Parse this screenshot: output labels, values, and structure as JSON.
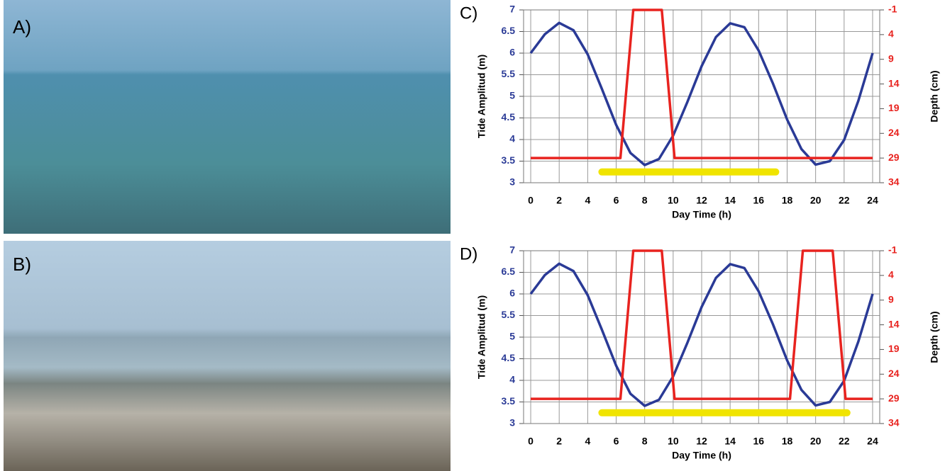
{
  "photo_labels": [
    "A)",
    "B)"
  ],
  "chart_data": [
    {
      "type": "line",
      "panel_label": "C)",
      "xlabel": "Day Time (h)",
      "ylabel": "Tide Amplitud (m)",
      "y2label": "Depth (cm)",
      "xlim": [
        -0.5,
        24.5
      ],
      "xticks": [
        0,
        2,
        4,
        6,
        8,
        10,
        12,
        14,
        16,
        18,
        20,
        22,
        24
      ],
      "ylim": [
        3,
        7
      ],
      "yticks": [
        3,
        3.5,
        4,
        4.5,
        5,
        5.5,
        6,
        6.5,
        7
      ],
      "y2lim": [
        34,
        -1
      ],
      "y2ticks": [
        -1,
        4,
        9,
        14,
        19,
        24,
        29,
        34
      ],
      "grid": true,
      "series": [
        {
          "color": "#2a3a96",
          "x": [
            0,
            1,
            2,
            3,
            4,
            5,
            6,
            7,
            8,
            9,
            10,
            11,
            12,
            13,
            14,
            15,
            16,
            17,
            18,
            19,
            20,
            21,
            22,
            23,
            24
          ],
          "values": [
            6.0,
            6.44,
            6.7,
            6.53,
            5.97,
            5.17,
            4.34,
            3.69,
            3.41,
            3.55,
            4.09,
            4.87,
            5.7,
            6.37,
            6.69,
            6.6,
            6.06,
            5.3,
            4.46,
            3.78,
            3.42,
            3.5,
            3.99,
            4.9,
            6.0
          ]
        },
        {
          "color": "#e8231f",
          "axis": "y2",
          "x": [
            0,
            6.3,
            7.2,
            9.2,
            10.1,
            24
          ],
          "values": [
            29,
            29,
            -1,
            -1,
            29,
            29
          ]
        },
        {
          "color": "#f0e400",
          "x": [
            5,
            17.2
          ],
          "values": [
            3.25,
            3.25
          ]
        }
      ]
    },
    {
      "type": "line",
      "panel_label": "D)",
      "xlabel": "Day Time (h)",
      "ylabel": "Tide Amplitud (m)",
      "y2label": "Depth (cm)",
      "xlim": [
        -0.5,
        24.5
      ],
      "xticks": [
        0,
        2,
        4,
        6,
        8,
        10,
        12,
        14,
        16,
        18,
        20,
        22,
        24
      ],
      "ylim": [
        3,
        7
      ],
      "yticks": [
        3,
        3.5,
        4,
        4.5,
        5,
        5.5,
        6,
        6.5,
        7
      ],
      "y2lim": [
        34,
        -1
      ],
      "y2ticks": [
        -1,
        4,
        9,
        14,
        19,
        24,
        29,
        34
      ],
      "grid": true,
      "series": [
        {
          "color": "#2a3a96",
          "x": [
            0,
            1,
            2,
            3,
            4,
            5,
            6,
            7,
            8,
            9,
            10,
            11,
            12,
            13,
            14,
            15,
            16,
            17,
            18,
            19,
            20,
            21,
            22,
            23,
            24
          ],
          "values": [
            6.0,
            6.44,
            6.7,
            6.53,
            5.97,
            5.17,
            4.34,
            3.69,
            3.41,
            3.55,
            4.09,
            4.87,
            5.7,
            6.37,
            6.69,
            6.6,
            6.06,
            5.3,
            4.46,
            3.78,
            3.42,
            3.5,
            3.99,
            4.9,
            6.0
          ]
        },
        {
          "color": "#e8231f",
          "axis": "y2",
          "x": [
            0,
            6.3,
            7.2,
            9.2,
            10.1,
            18.2,
            19.1,
            21.2,
            22.1,
            24
          ],
          "values": [
            29,
            29,
            -1,
            -1,
            29,
            29,
            -1,
            -1,
            29,
            29
          ]
        },
        {
          "color": "#f0e400",
          "x": [
            5,
            22.2
          ],
          "values": [
            3.25,
            3.25
          ]
        }
      ]
    }
  ]
}
